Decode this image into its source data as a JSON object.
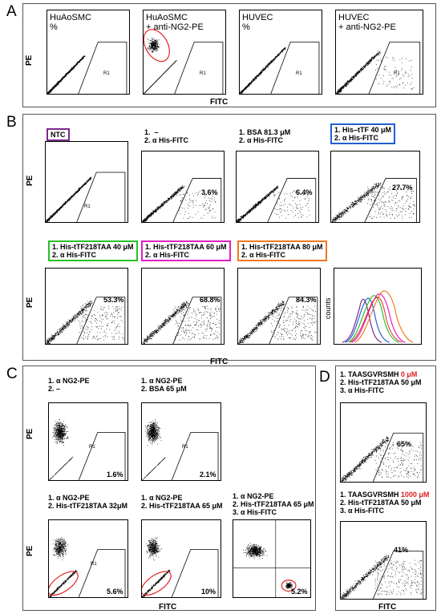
{
  "panels": {
    "A": {
      "letter": "A",
      "plots": [
        {
          "label": "HuAoSMC\n%",
          "r1": "R1"
        },
        {
          "label": "HuAoSMC\n+ anti-NG2-PE",
          "r1": "R1"
        },
        {
          "label": "HUVEC\n%",
          "r1": "R1"
        },
        {
          "label": "HUVEC\n+ anti-NG2-PE",
          "r1": "R1"
        }
      ],
      "ylabel": "PE",
      "xlabel": "FITC"
    },
    "B": {
      "letter": "B",
      "top": [
        {
          "label": "NTC",
          "pct": "",
          "r1": "R1"
        },
        {
          "label": "1.  –\n2. α His-FITC",
          "pct": "3.6%",
          "r1": ""
        },
        {
          "label": "1. BSA 81.3 μM\n2. α His-FITC",
          "pct": "6.4%",
          "r1": ""
        },
        {
          "label": "1. His–tTF 40 μM\n2. α His-FITC",
          "pct": "27.7%",
          "r1": ""
        }
      ],
      "bottom": [
        {
          "label": "1. His-tTF218TAA 40 μM\n2. α His-FITC",
          "pct": "53.3%"
        },
        {
          "label": "1. His-tTF218TAA 60 μM\n2. α His-FITC",
          "pct": "68.8%"
        },
        {
          "label": "1. His-tTF218TAA 80 μM\n2. α His-FITC",
          "pct": "84.3%"
        }
      ],
      "hist_ylabel": "counts",
      "ylabel": "PE",
      "xlabel": "FITC"
    },
    "C": {
      "letter": "C",
      "plots": [
        {
          "label": "1. α NG2-PE\n2. –",
          "pct": "1.6%",
          "r1": "R1"
        },
        {
          "label": "1. α NG2-PE\n2. BSA 65 μM",
          "pct": "2.1%",
          "r1": "R1"
        },
        {
          "label": "1. α NG2-PE\n2. His-tTF218TAA 32μM",
          "pct": "5.6%",
          "r1": "R1"
        },
        {
          "label": "1. α NG2-PE\n2. His-tTF218TAA 65 μM",
          "pct": "10%",
          "r1": ""
        },
        {
          "label": "1. α NG2-PE\n2. His-tTF218TAA 65 μM\n3. α His-FITC",
          "pct": "5.2%",
          "r1": ""
        }
      ],
      "ylabel": "PE",
      "xlabel": "FITC"
    },
    "D": {
      "letter": "D",
      "plots": [
        {
          "line1": "1. TAASGVRSMH ",
          "conc": "0 μM",
          "line2": "2. His-tTF218TAA 50 μM\n3. α His-FITC",
          "pct": "65%"
        },
        {
          "line1": "1. TAASGVRSMH ",
          "conc": "1000 μM",
          "line2": "2. His-tTF218TAA 50 μM\n3. α His-FITC",
          "pct": "41%"
        }
      ],
      "xlabel": "FITC"
    }
  },
  "colors": {
    "ntc": "#7b2a8a",
    "blue": "#2060d0",
    "green": "#28c028",
    "magenta": "#e020c0",
    "orange": "#f07820",
    "red": "#e02020"
  }
}
